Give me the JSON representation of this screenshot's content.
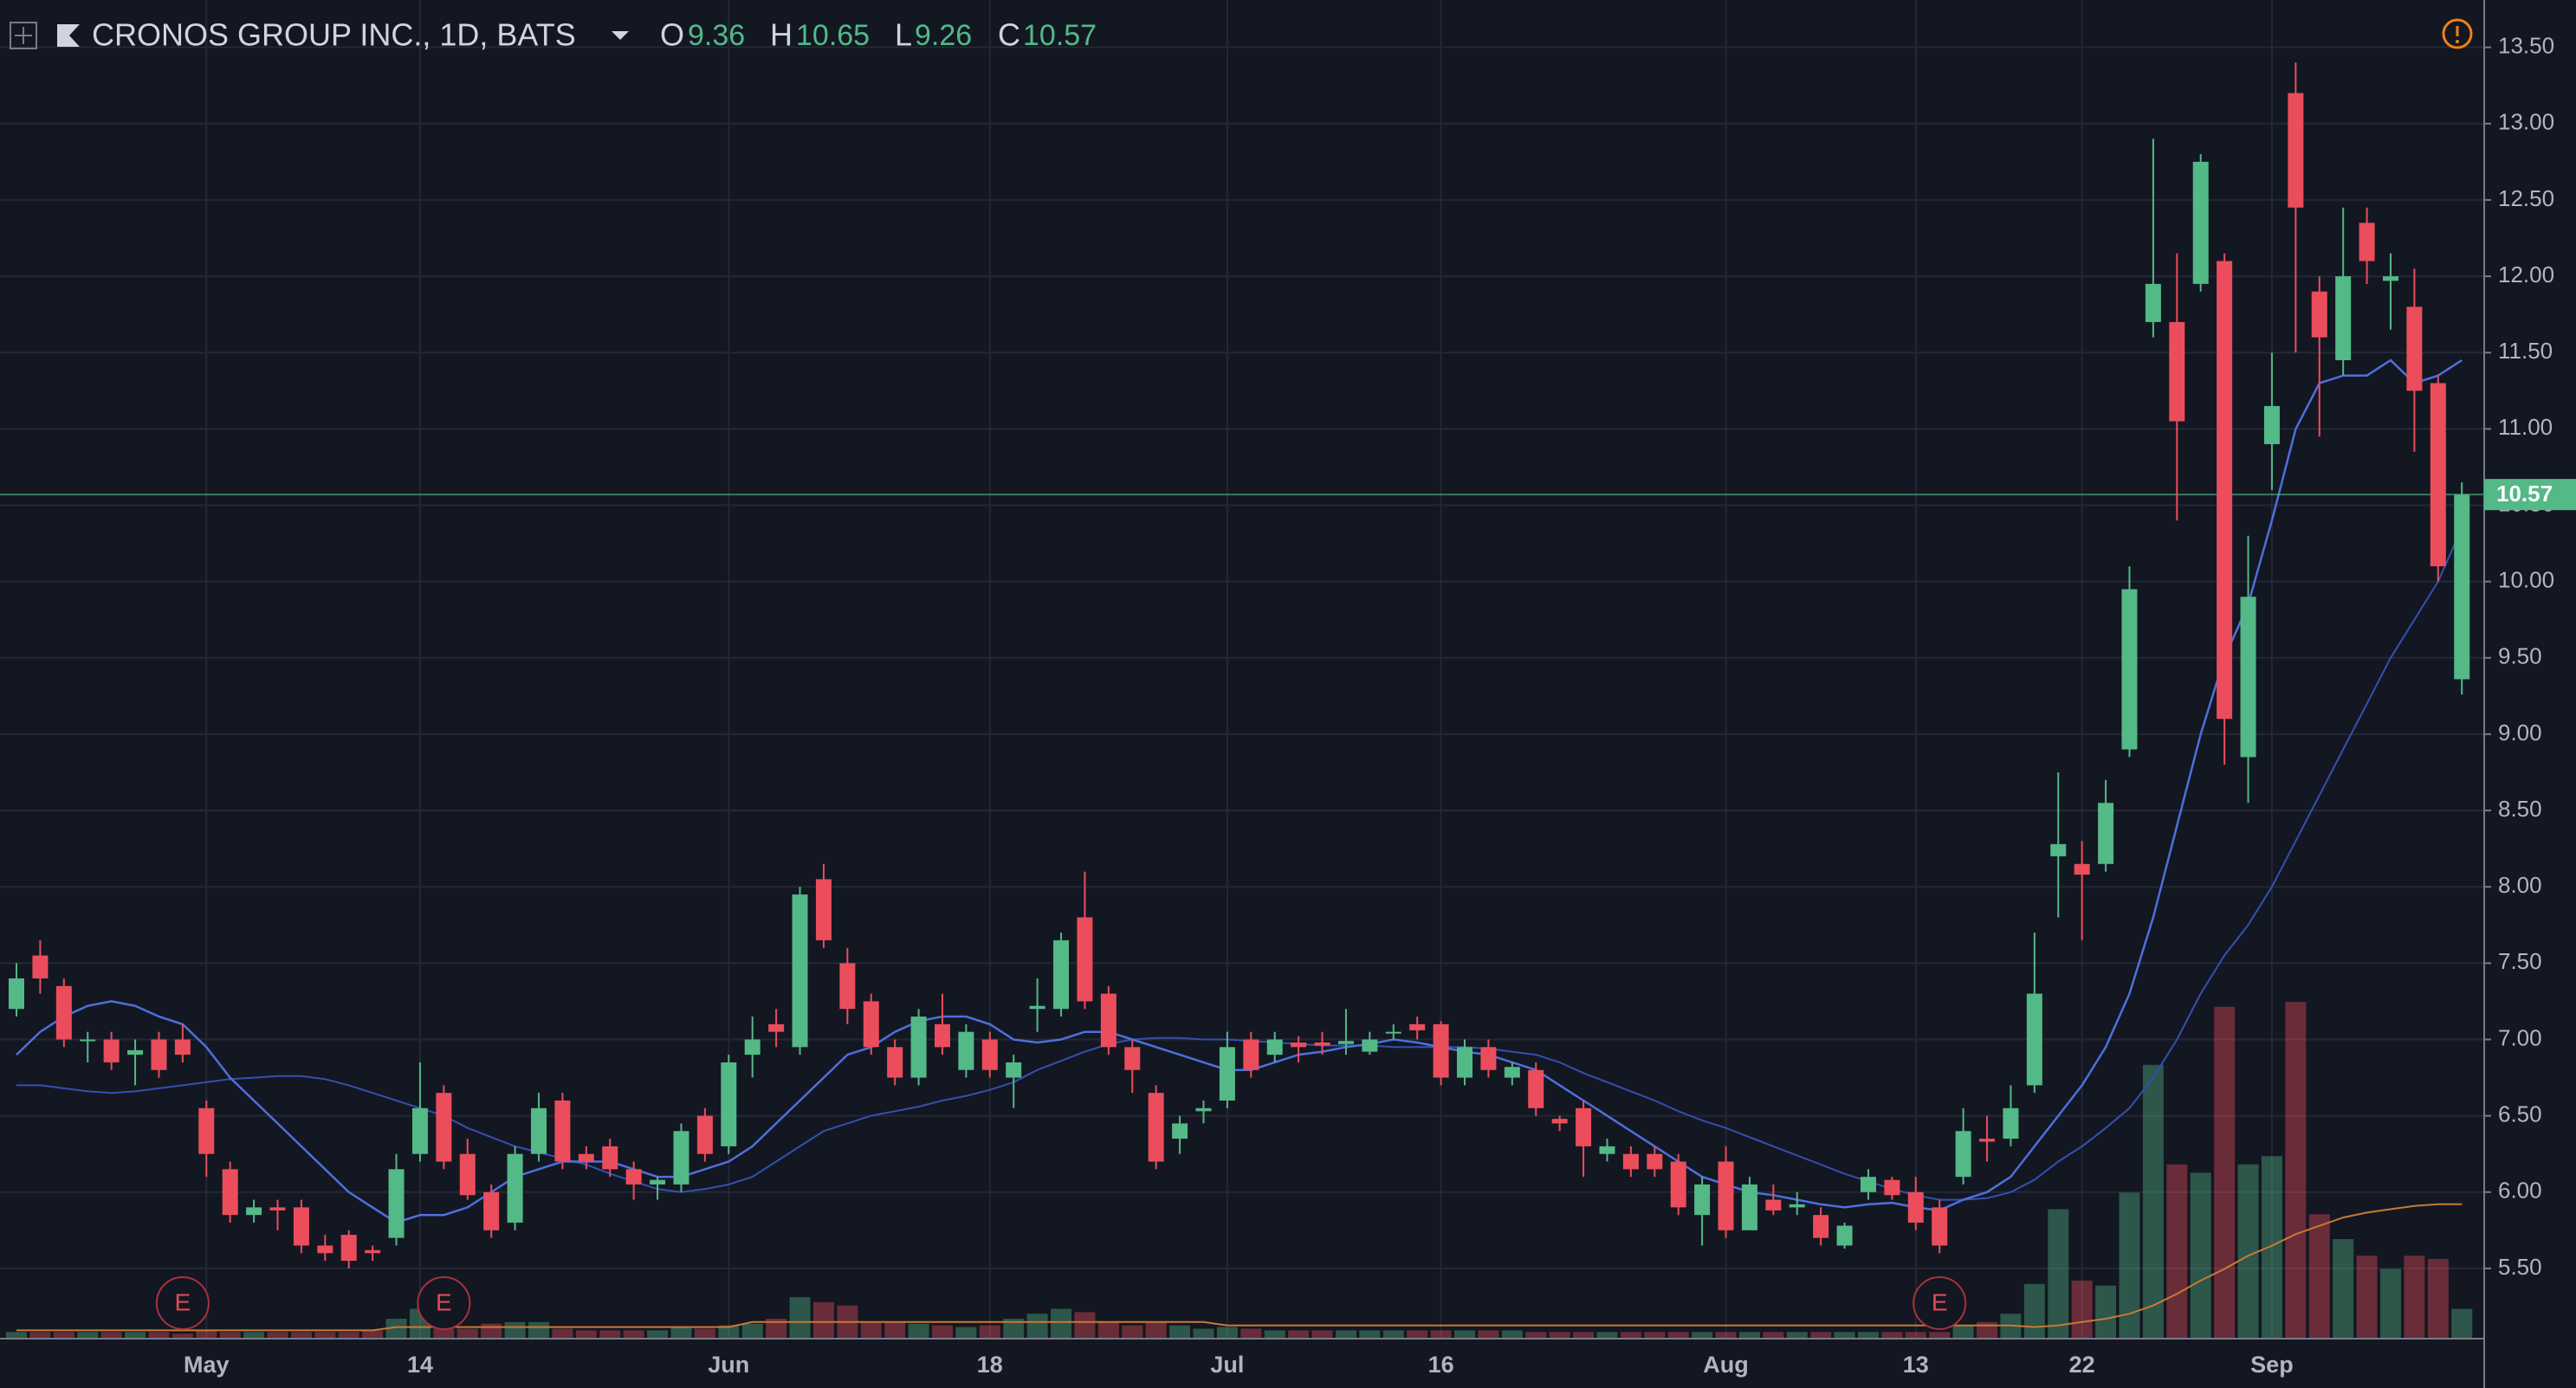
{
  "chart_data": {
    "type": "candlestick",
    "title": "CRONOS GROUP INC., 1D, BATS",
    "ohlc_labels": [
      "O",
      "H",
      "L",
      "C"
    ],
    "categories": [
      null,
      null,
      null,
      null,
      null,
      null,
      null,
      null,
      "May",
      null,
      null,
      null,
      null,
      null,
      null,
      null,
      null,
      "14",
      null,
      null,
      null,
      null,
      null,
      null,
      null,
      null,
      null,
      null,
      null,
      null,
      "Jun",
      null,
      null,
      null,
      null,
      null,
      null,
      null,
      null,
      null,
      null,
      "18",
      null,
      null,
      null,
      null,
      null,
      null,
      null,
      null,
      null,
      "Jul",
      null,
      null,
      null,
      null,
      null,
      null,
      null,
      null,
      "16",
      null,
      null,
      null,
      null,
      null,
      null,
      null,
      null,
      null,
      null,
      null,
      "Aug",
      null,
      null,
      null,
      null,
      null,
      null,
      null,
      "13",
      null,
      null,
      null,
      null,
      null,
      null,
      "22",
      null,
      null,
      null,
      null,
      null,
      null,
      null,
      "Sep",
      null,
      null,
      null,
      null,
      null,
      null,
      null,
      null
    ],
    "earnings": [
      null,
      null,
      null,
      null,
      null,
      null,
      null,
      "E",
      null,
      null,
      null,
      null,
      null,
      null,
      null,
      null,
      null,
      null,
      "E",
      null,
      null,
      null,
      null,
      null,
      null,
      null,
      null,
      null,
      null,
      null,
      null,
      null,
      null,
      null,
      null,
      null,
      null,
      null,
      null,
      null,
      null,
      null,
      null,
      null,
      null,
      null,
      null,
      null,
      null,
      null,
      null,
      null,
      null,
      null,
      null,
      null,
      null,
      null,
      null,
      null,
      null,
      null,
      null,
      null,
      null,
      null,
      null,
      null,
      null,
      null,
      null,
      null,
      null,
      null,
      null,
      null,
      null,
      null,
      null,
      null,
      null,
      "E",
      null,
      null,
      null,
      null,
      null,
      null,
      null,
      null,
      null,
      null,
      null,
      null,
      null,
      null,
      null,
      null,
      null,
      null,
      null,
      null,
      null,
      null
    ],
    "open": [
      7.2,
      7.55,
      7.35,
      7.0,
      7.0,
      6.9,
      7.0,
      7.0,
      6.55,
      6.15,
      5.85,
      5.9,
      5.9,
      5.65,
      5.72,
      5.62,
      5.7,
      6.25,
      6.65,
      6.25,
      6.0,
      5.8,
      6.25,
      6.6,
      6.25,
      6.3,
      6.15,
      6.05,
      6.05,
      6.5,
      6.3,
      6.9,
      7.1,
      6.95,
      8.05,
      7.5,
      7.25,
      6.95,
      6.75,
      7.1,
      6.8,
      7.0,
      6.75,
      7.2,
      7.2,
      7.8,
      7.3,
      6.95,
      6.65,
      6.35,
      6.53,
      6.6,
      7.0,
      6.9,
      6.98,
      6.98,
      6.97,
      6.92,
      7.04,
      7.1,
      7.1,
      6.75,
      6.95,
      6.75,
      6.8,
      6.48,
      6.55,
      6.25,
      6.25,
      6.25,
      6.2,
      5.85,
      6.2,
      5.75,
      5.95,
      5.9,
      5.85,
      5.65,
      6.0,
      6.08,
      6.0,
      5.9,
      6.1,
      6.35,
      6.35,
      6.7,
      8.2,
      8.15,
      8.15,
      8.9,
      11.7,
      11.7,
      11.95,
      12.1,
      8.85,
      10.9,
      13.2,
      11.9,
      11.45,
      12.35,
      11.97,
      11.8,
      11.3,
      9.36
    ],
    "high": [
      7.5,
      7.65,
      7.4,
      7.05,
      7.05,
      7.0,
      7.05,
      7.1,
      6.6,
      6.2,
      5.95,
      5.95,
      5.95,
      5.72,
      5.75,
      5.65,
      6.25,
      6.85,
      6.7,
      6.35,
      6.05,
      6.3,
      6.65,
      6.65,
      6.3,
      6.35,
      6.2,
      6.1,
      6.45,
      6.55,
      6.9,
      7.15,
      7.2,
      8.0,
      8.15,
      7.6,
      7.3,
      7.0,
      7.2,
      7.3,
      7.1,
      7.05,
      6.9,
      7.4,
      7.7,
      8.1,
      7.35,
      7.0,
      6.7,
      6.5,
      6.6,
      7.05,
      7.05,
      7.05,
      7.02,
      7.05,
      7.2,
      7.05,
      7.1,
      7.15,
      7.12,
      7.0,
      7.0,
      6.85,
      6.85,
      6.5,
      6.6,
      6.35,
      6.3,
      6.3,
      6.25,
      6.1,
      6.3,
      6.1,
      6.05,
      6.0,
      5.9,
      5.8,
      6.15,
      6.1,
      6.1,
      5.95,
      6.55,
      6.5,
      6.7,
      7.7,
      8.75,
      8.3,
      8.7,
      10.1,
      12.9,
      12.15,
      12.8,
      12.15,
      10.3,
      11.5,
      13.4,
      12.0,
      12.45,
      12.45,
      12.15,
      12.05,
      11.35,
      10.65
    ],
    "low": [
      7.15,
      7.3,
      6.95,
      6.85,
      6.8,
      6.7,
      6.75,
      6.85,
      6.1,
      5.8,
      5.8,
      5.75,
      5.6,
      5.55,
      5.5,
      5.55,
      5.65,
      6.2,
      6.15,
      5.95,
      5.7,
      5.75,
      6.2,
      6.15,
      6.15,
      6.1,
      5.95,
      5.95,
      6.0,
      6.2,
      6.25,
      6.75,
      6.95,
      6.9,
      7.6,
      7.1,
      6.9,
      6.7,
      6.7,
      6.9,
      6.75,
      6.75,
      6.55,
      7.05,
      7.15,
      7.2,
      6.9,
      6.65,
      6.15,
      6.25,
      6.45,
      6.55,
      6.75,
      6.85,
      6.85,
      6.9,
      6.9,
      6.9,
      7.0,
      7.0,
      6.7,
      6.7,
      6.75,
      6.7,
      6.5,
      6.4,
      6.1,
      6.2,
      6.1,
      6.1,
      5.85,
      5.65,
      5.7,
      5.75,
      5.85,
      5.85,
      5.65,
      5.63,
      5.95,
      5.95,
      5.75,
      5.6,
      6.05,
      6.2,
      6.3,
      6.65,
      7.8,
      7.65,
      8.1,
      8.85,
      11.6,
      10.4,
      11.9,
      8.8,
      8.55,
      10.6,
      11.5,
      10.95,
      11.35,
      11.95,
      11.65,
      10.85,
      10.0,
      9.26
    ],
    "close": [
      7.4,
      7.4,
      7.0,
      7.0,
      6.85,
      6.93,
      6.8,
      6.9,
      6.25,
      5.85,
      5.9,
      5.88,
      5.65,
      5.6,
      5.55,
      5.6,
      6.15,
      6.55,
      6.2,
      5.98,
      5.75,
      6.25,
      6.55,
      6.2,
      6.2,
      6.15,
      6.05,
      6.08,
      6.4,
      6.25,
      6.85,
      7.0,
      7.05,
      7.95,
      7.65,
      7.2,
      6.95,
      6.75,
      7.15,
      6.95,
      7.05,
      6.8,
      6.85,
      7.22,
      7.65,
      7.25,
      6.95,
      6.8,
      6.2,
      6.45,
      6.55,
      6.95,
      6.8,
      7.0,
      6.95,
      6.96,
      6.99,
      7.0,
      7.05,
      7.06,
      6.75,
      6.95,
      6.8,
      6.82,
      6.55,
      6.45,
      6.3,
      6.3,
      6.15,
      6.15,
      5.9,
      6.05,
      5.75,
      6.05,
      5.88,
      5.92,
      5.7,
      5.78,
      6.1,
      5.98,
      5.8,
      5.65,
      6.4,
      6.33,
      6.55,
      7.3,
      8.28,
      8.08,
      8.55,
      9.95,
      11.95,
      11.05,
      12.75,
      9.1,
      9.9,
      11.15,
      12.45,
      11.6,
      12.0,
      12.1,
      12.0,
      11.25,
      10.1,
      10.57
    ],
    "ma_fast": [
      6.9,
      7.05,
      7.15,
      7.22,
      7.25,
      7.22,
      7.15,
      7.1,
      6.95,
      6.75,
      6.6,
      6.45,
      6.3,
      6.15,
      6.0,
      5.9,
      5.8,
      5.85,
      5.85,
      5.9,
      6.0,
      6.1,
      6.15,
      6.2,
      6.2,
      6.2,
      6.15,
      6.1,
      6.1,
      6.15,
      6.2,
      6.3,
      6.45,
      6.6,
      6.75,
      6.9,
      6.95,
      7.05,
      7.12,
      7.15,
      7.15,
      7.1,
      7.0,
      6.98,
      7.0,
      7.05,
      7.05,
      7.0,
      6.95,
      6.9,
      6.85,
      6.8,
      6.8,
      6.85,
      6.9,
      6.92,
      6.95,
      6.97,
      7.0,
      6.98,
      6.95,
      6.92,
      6.9,
      6.85,
      6.8,
      6.7,
      6.6,
      6.5,
      6.4,
      6.3,
      6.2,
      6.1,
      6.05,
      6.0,
      5.98,
      5.95,
      5.92,
      5.9,
      5.92,
      5.93,
      5.9,
      5.88,
      5.95,
      6.0,
      6.1,
      6.3,
      6.5,
      6.7,
      6.95,
      7.3,
      7.8,
      8.4,
      9.0,
      9.5,
      9.85,
      10.4,
      11.0,
      11.3,
      11.35,
      11.35,
      11.45,
      11.3,
      11.35,
      11.45
    ],
    "ma_slow": [
      6.7,
      6.7,
      6.68,
      6.66,
      6.65,
      6.66,
      6.68,
      6.7,
      6.72,
      6.74,
      6.75,
      6.76,
      6.76,
      6.74,
      6.7,
      6.65,
      6.6,
      6.55,
      6.5,
      6.42,
      6.36,
      6.3,
      6.26,
      6.22,
      6.18,
      6.12,
      6.07,
      6.02,
      6.0,
      6.02,
      6.05,
      6.1,
      6.2,
      6.3,
      6.4,
      6.45,
      6.5,
      6.53,
      6.56,
      6.6,
      6.63,
      6.67,
      6.72,
      6.8,
      6.86,
      6.92,
      6.97,
      7.0,
      7.01,
      7.01,
      7.0,
      7.0,
      6.99,
      6.98,
      6.97,
      6.96,
      6.96,
      6.96,
      6.95,
      6.95,
      6.95,
      6.95,
      6.94,
      6.92,
      6.9,
      6.85,
      6.78,
      6.72,
      6.66,
      6.6,
      6.53,
      6.47,
      6.42,
      6.36,
      6.3,
      6.24,
      6.18,
      6.12,
      6.07,
      6.02,
      5.98,
      5.95,
      5.95,
      5.96,
      6.0,
      6.08,
      6.2,
      6.3,
      6.42,
      6.55,
      6.75,
      7.0,
      7.3,
      7.55,
      7.75,
      8.0,
      8.3,
      8.6,
      8.9,
      9.2,
      9.5,
      9.75,
      10.0,
      10.35
    ],
    "volume": [
      4,
      4,
      4,
      4,
      4,
      4,
      4,
      3,
      5,
      4,
      4,
      4,
      4,
      4,
      4,
      5,
      12,
      18,
      6,
      6,
      9,
      10,
      10,
      6,
      5,
      5,
      5,
      5,
      7,
      6,
      8,
      9,
      12,
      25,
      22,
      20,
      10,
      10,
      9,
      8,
      7,
      8,
      12,
      15,
      18,
      16,
      10,
      8,
      10,
      8,
      6,
      7,
      6,
      5,
      5,
      5,
      5,
      5,
      5,
      5,
      5,
      5,
      5,
      5,
      4,
      4,
      4,
      4,
      4,
      4,
      4,
      4,
      4,
      4,
      4,
      4,
      4,
      4,
      4,
      4,
      4,
      4,
      8,
      10,
      15,
      33,
      78,
      35,
      32,
      88,
      165,
      105,
      100,
      200,
      105,
      110,
      203,
      75,
      60,
      50,
      42,
      50,
      48,
      18
    ],
    "volume_ma": [
      5,
      5,
      5,
      5,
      5,
      5,
      5,
      5,
      5,
      5,
      5,
      5,
      5,
      5,
      5,
      5,
      7,
      7,
      7,
      7,
      7,
      7,
      7,
      7,
      7,
      7,
      7,
      7,
      7,
      7,
      7,
      10,
      10,
      10,
      10,
      10,
      10,
      10,
      10,
      10,
      10,
      10,
      10,
      10,
      10,
      10,
      10,
      10,
      10,
      10,
      10,
      8,
      8,
      8,
      8,
      8,
      8,
      8,
      8,
      8,
      8,
      8,
      8,
      8,
      8,
      8,
      8,
      8,
      8,
      8,
      8,
      8,
      8,
      8,
      8,
      8,
      8,
      8,
      8,
      8,
      8,
      8,
      8,
      8,
      8,
      7,
      8,
      10,
      12,
      15,
      20,
      27,
      35,
      42,
      50,
      56,
      63,
      68,
      73,
      76,
      78,
      80,
      81,
      81
    ],
    "up_color": "#53b987",
    "down_color": "#eb4d5c",
    "ma_fast_color": "#4f6fdc",
    "ma_slow_color": "#3450b0",
    "volume_ma_color": "#c97a32",
    "ylim": [
      5.04,
      13.81
    ],
    "yticks": [
      {
        "value": 5.5,
        "label": "5.50"
      },
      {
        "value": 6,
        "label": "6.00"
      },
      {
        "value": 6.5,
        "label": "6.50"
      },
      {
        "value": 7,
        "label": "7.00"
      },
      {
        "value": 7.5,
        "label": "7.50"
      },
      {
        "value": 8,
        "label": "8.00"
      },
      {
        "value": 8.5,
        "label": "8.50"
      },
      {
        "value": 9,
        "label": "9.00"
      },
      {
        "value": 9.5,
        "label": "9.50"
      },
      {
        "value": 10,
        "label": "10.00"
      },
      {
        "value": 10.5,
        "label": "10.50"
      },
      {
        "value": 11,
        "label": "11.00"
      },
      {
        "value": 11.5,
        "label": "11.50"
      },
      {
        "value": 12,
        "label": "12.00"
      },
      {
        "value": 12.5,
        "label": "12.50"
      },
      {
        "value": 13,
        "label": "13.00"
      },
      {
        "value": 13.5,
        "label": "13.50"
      }
    ],
    "grid": true
  }
}
